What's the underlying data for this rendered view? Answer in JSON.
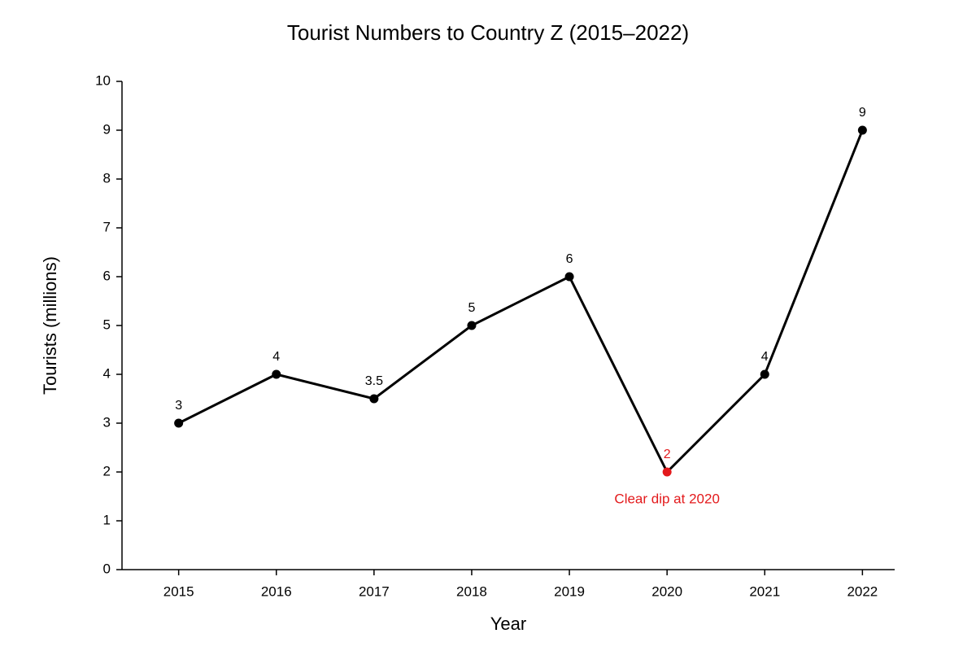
{
  "chart_data": {
    "type": "line",
    "title": "Tourist Numbers to Country Z (2015–2022)",
    "x_label": "Year",
    "y_label": "Tourists (millions)",
    "x": [
      2015,
      2016,
      2017,
      2018,
      2019,
      2020,
      2021,
      2022
    ],
    "values": [
      3,
      4,
      3.5,
      5,
      6,
      2,
      4,
      9
    ],
    "color": "#000000",
    "point_colors": [
      "#000000",
      "#000000",
      "#000000",
      "#000000",
      "#000000",
      "#e31a1c",
      "#000000",
      "#000000"
    ],
    "xlim": [
      2014.42,
      2022.33
    ],
    "xticks": [
      2015,
      2016,
      2017,
      2018,
      2019,
      2020,
      2021,
      2022
    ],
    "ylim": [
      0,
      10
    ],
    "yticks": [
      0,
      1,
      2,
      3,
      4,
      5,
      6,
      7,
      8,
      9,
      10
    ],
    "grid": false,
    "annotations": [
      {
        "text": "Clear dip at 2020",
        "x": 2020,
        "y": 2,
        "color": "#e31a1c"
      }
    ]
  }
}
